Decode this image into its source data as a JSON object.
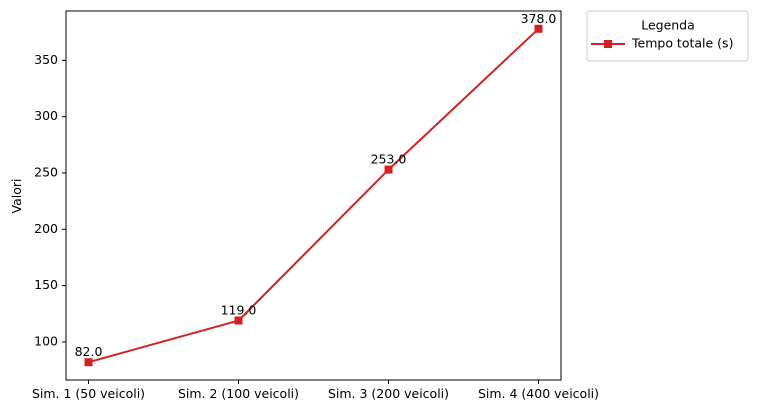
{
  "chart_data": {
    "type": "line",
    "title": "",
    "xlabel": "",
    "ylabel": "Valori",
    "categories": [
      "Sim. 1 (50 veicoli)",
      "Sim. 2 (100 veicoli)",
      "Sim. 3 (200 veicoli)",
      "Sim. 4 (400 veicoli)"
    ],
    "series": [
      {
        "name": "Tempo totale (s)",
        "values": [
          82.0,
          119.0,
          253.0,
          378.0
        ],
        "color": "#d62020",
        "marker": "square",
        "data_labels": [
          "82.0",
          "119.0",
          "253.0",
          "378.0"
        ]
      }
    ],
    "ylim": [
      66.2,
      393.8
    ],
    "yticks": [
      100,
      150,
      200,
      250,
      300,
      350
    ],
    "grid": false,
    "legend": {
      "title": "Legenda",
      "placement": "outside-top-right"
    }
  }
}
